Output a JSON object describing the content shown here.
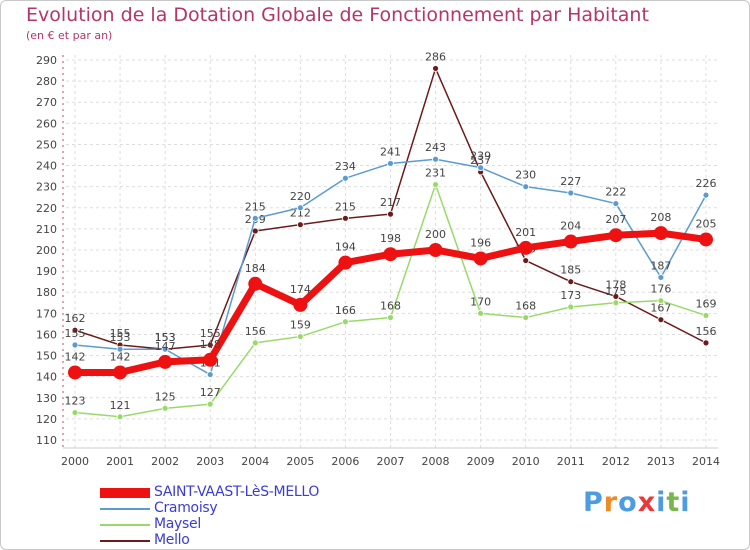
{
  "title": "Evolution de la Dotation Globale de Fonctionnement par Habitant",
  "subtitle": "(en € et par an)",
  "logo": {
    "text": "Proxiti",
    "letters": [
      "P",
      "r",
      "o",
      "x",
      "i",
      "t",
      "i"
    ],
    "colors": [
      "#4d9be0",
      "#f08a24",
      "#4d9be0",
      "#e83a3a",
      "#4d9be0",
      "#78b84a",
      "#4d9be0"
    ]
  },
  "chart_data": {
    "type": "line",
    "title": "Evolution de la Dotation Globale de Fonctionnement par Habitant",
    "subtitle": "(en € et par an)",
    "xlabel": "",
    "ylabel": "",
    "ylim": [
      110,
      290
    ],
    "ytick_step": 10,
    "y_ticks": [
      "110",
      "120",
      "130",
      "140",
      "150",
      "160",
      "170",
      "180",
      "190",
      "200",
      "210",
      "220",
      "230",
      "240",
      "250",
      "260",
      "270",
      "280",
      "290"
    ],
    "grid": true,
    "legend_position": "bottom-left",
    "categories": [
      "2000",
      "2001",
      "2002",
      "2003",
      "2004",
      "2005",
      "2006",
      "2007",
      "2008",
      "2009",
      "2010",
      "2011",
      "2012",
      "2013",
      "2014"
    ],
    "series": [
      {
        "name": "Mello",
        "color": "#6b1b1b",
        "values": [
          162,
          155,
          153,
          155,
          209,
          212,
          215,
          217,
          286,
          237,
          195,
          185,
          178,
          167,
          156
        ]
      },
      {
        "name": "Maysel",
        "color": "#99d96a",
        "values": [
          123,
          121,
          125,
          127,
          156,
          159,
          166,
          168,
          231,
          170,
          168,
          173,
          175,
          176,
          169
        ]
      },
      {
        "name": "Cramoisy",
        "color": "#5b9bd0",
        "values": [
          155,
          153,
          153,
          141,
          215,
          220,
          234,
          241,
          243,
          239,
          230,
          227,
          222,
          187,
          226
        ]
      },
      {
        "name": "SAINT-VAAST-LèS-MELLO",
        "color": "#ee1111",
        "values": [
          142,
          142,
          147,
          148,
          184,
          174,
          194,
          198,
          200,
          196,
          201,
          204,
          207,
          208,
          205
        ]
      }
    ],
    "legend": [
      "SAINT-VAAST-LèS-MELLO",
      "Cramoisy",
      "Maysel",
      "Mello"
    ]
  }
}
